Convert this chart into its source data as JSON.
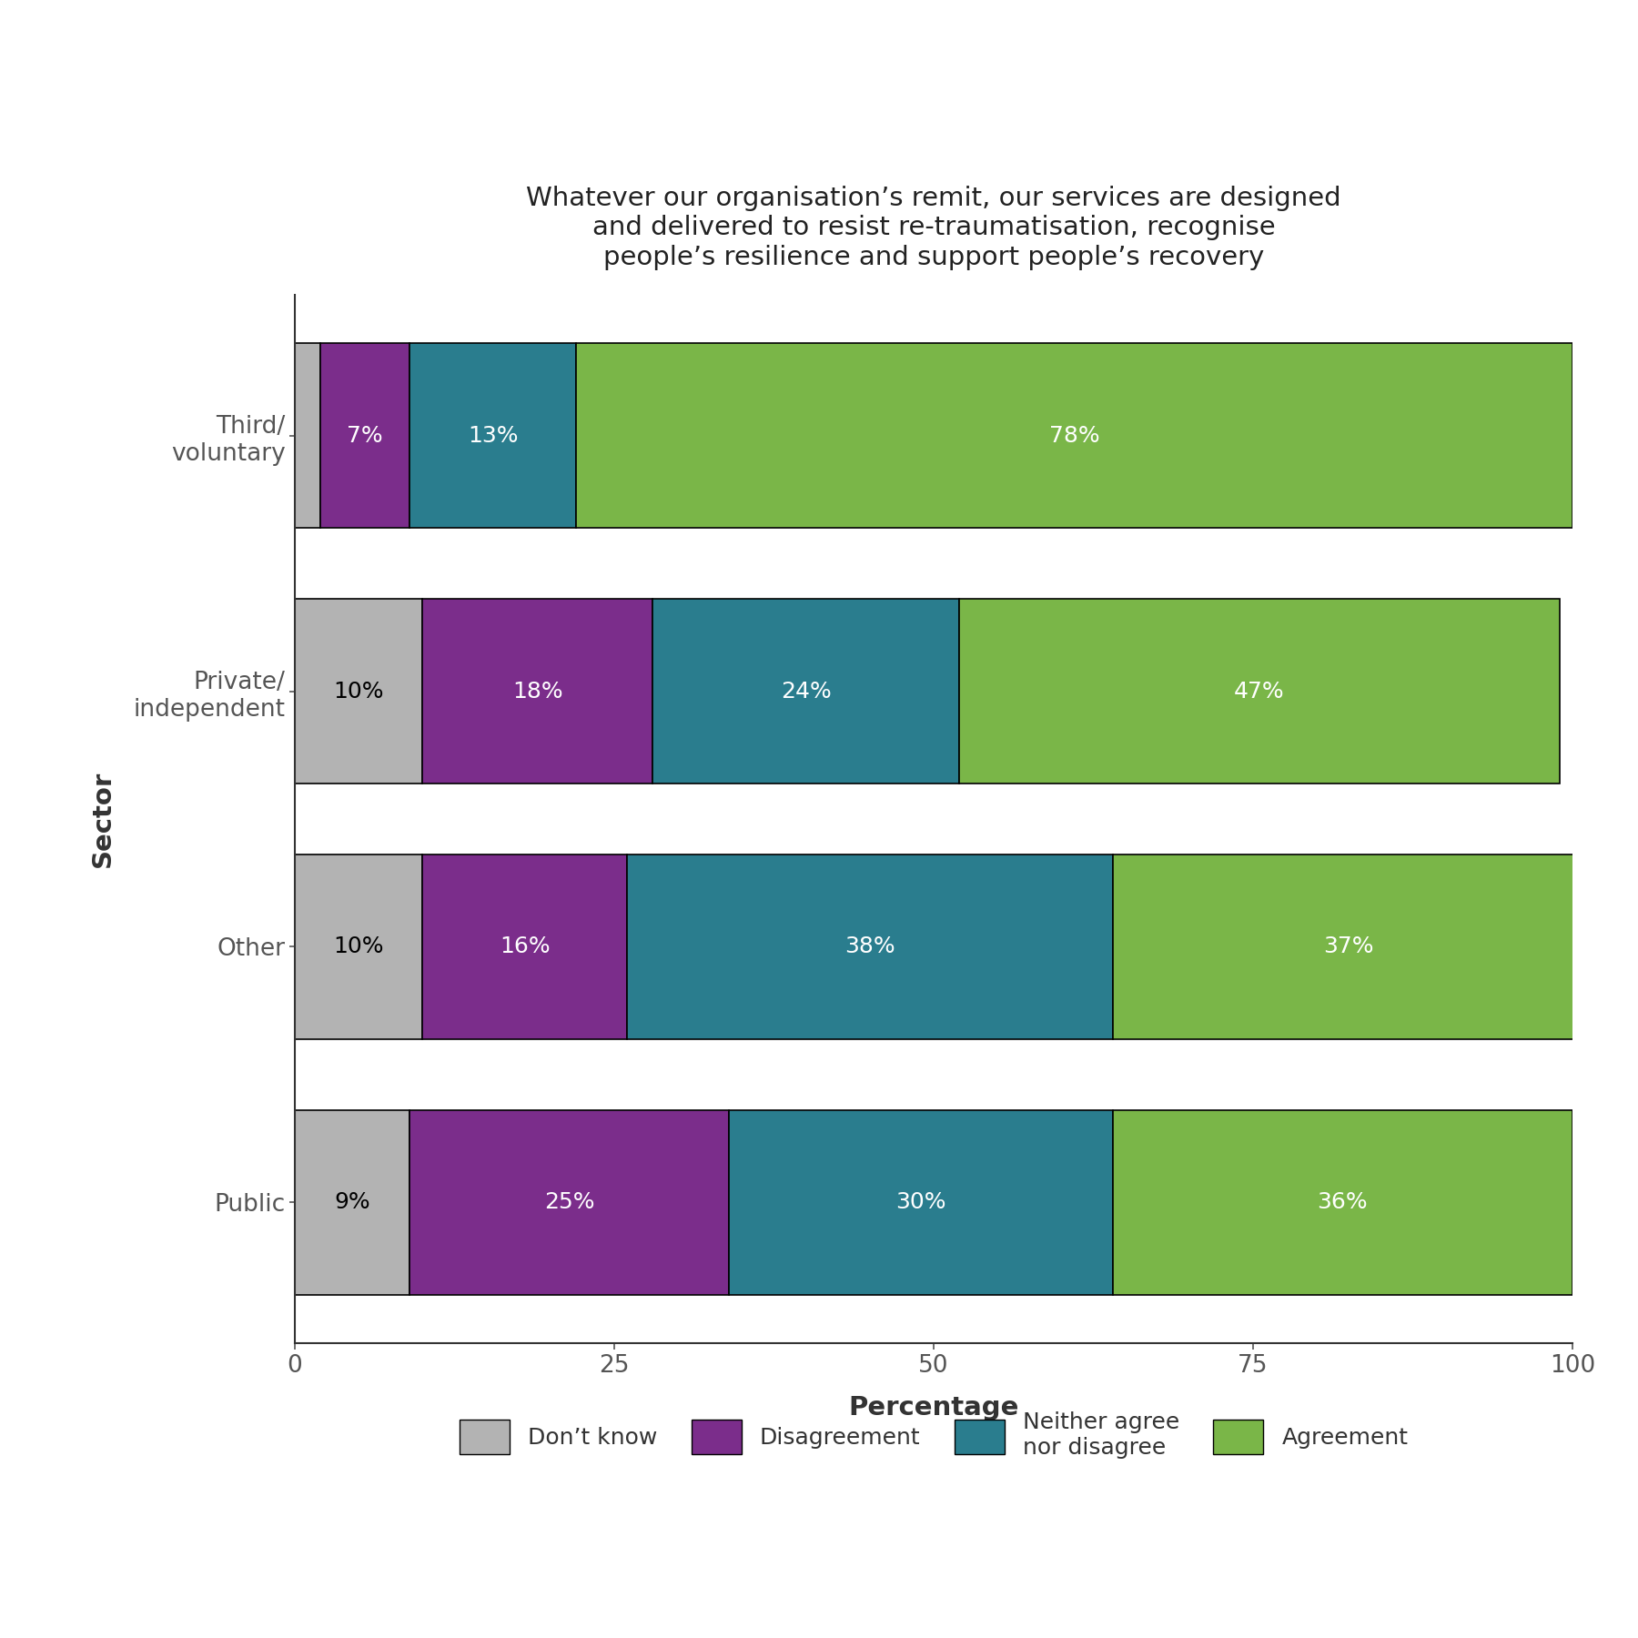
{
  "title": "Whatever our organisation’s remit, our services are designed\nand delivered to resist re-traumatisation, recognise\npeople’s resilience and support people’s recovery",
  "sectors": [
    "Third/\nvoluntary",
    "Private/\nindependent",
    "Other",
    "Public"
  ],
  "categories": [
    "Don’t know",
    "Disagreement",
    "Neither agree\nnor disagree",
    "Agreement"
  ],
  "colors": [
    "#b3b3b3",
    "#7b2d8b",
    "#2a7d8e",
    "#7ab648"
  ],
  "data": {
    "Third/\nvoluntary": [
      2,
      7,
      13,
      78
    ],
    "Private/\nindependent": [
      10,
      18,
      24,
      47
    ],
    "Other": [
      10,
      16,
      38,
      37
    ],
    "Public": [
      9,
      25,
      30,
      36
    ]
  },
  "label_data": {
    "Third/\nvoluntary": [
      7,
      13,
      78
    ],
    "Private/\nindependent": [
      10,
      18,
      24,
      47
    ],
    "Other": [
      10,
      16,
      38,
      37
    ],
    "Public": [
      9,
      25,
      30,
      36
    ]
  },
  "xlabel": "Percentage",
  "ylabel": "Sector",
  "xlim": [
    0,
    100
  ],
  "xticks": [
    0,
    25,
    50,
    75,
    100
  ],
  "bar_height": 0.72,
  "title_fontsize": 21,
  "axis_label_fontsize": 21,
  "tick_fontsize": 19,
  "legend_fontsize": 18,
  "value_fontsize": 18,
  "background_color": "#ffffff"
}
